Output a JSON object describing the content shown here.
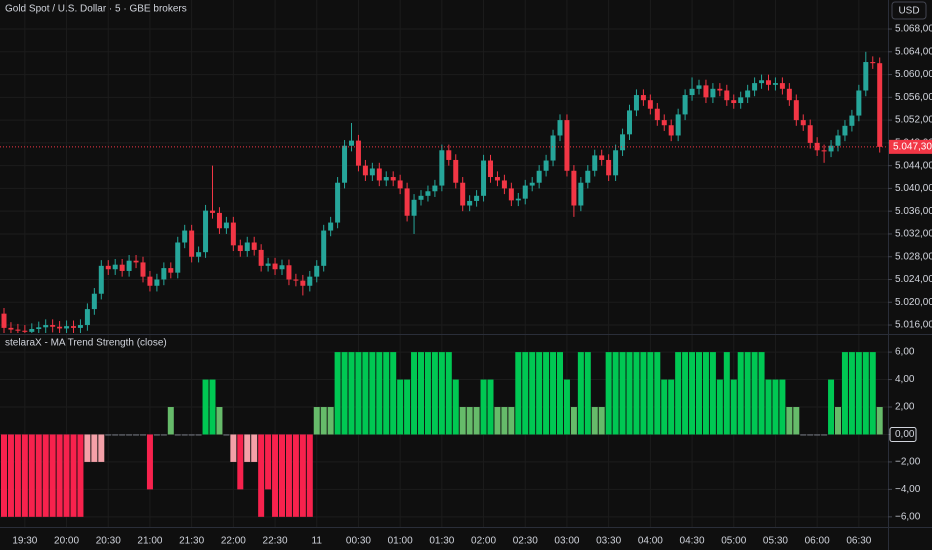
{
  "chart_data": [
    {
      "type": "candlestick",
      "title": "Gold Spot / U.S. Dollar · 5 · GBE brokers",
      "currency": "USD",
      "categories": [
        null,
        null,
        null,
        "19:30",
        null,
        null,
        null,
        null,
        null,
        "20:00",
        null,
        null,
        null,
        null,
        null,
        "20:30",
        null,
        null,
        null,
        null,
        null,
        "21:00",
        null,
        null,
        null,
        null,
        null,
        "21:30",
        null,
        null,
        null,
        null,
        null,
        "22:00",
        null,
        null,
        null,
        null,
        null,
        "22:30",
        null,
        null,
        null,
        null,
        null,
        "11",
        null,
        null,
        null,
        null,
        null,
        "00:30",
        null,
        null,
        null,
        null,
        null,
        "01:00",
        null,
        null,
        null,
        null,
        null,
        "01:30",
        null,
        null,
        null,
        null,
        null,
        "02:00",
        null,
        null,
        null,
        null,
        null,
        "02:30",
        null,
        null,
        null,
        null,
        null,
        "03:00",
        null,
        null,
        null,
        null,
        null,
        "03:30",
        null,
        null,
        null,
        null,
        null,
        "04:00",
        null,
        null,
        null,
        null,
        null,
        "04:30",
        null,
        null,
        null,
        null,
        null,
        "05:00",
        null,
        null,
        null,
        null,
        null,
        "05:30",
        null,
        null,
        null,
        null,
        null,
        "06:00",
        null,
        null,
        null,
        null,
        null,
        "06:30",
        null,
        null,
        null
      ],
      "open": [
        5018.0,
        5015.5,
        5015.2,
        5015.0,
        5014.8,
        5015.3,
        5015.6,
        5016.0,
        5015.7,
        5015.4,
        5015.8,
        5015.5,
        5016.0,
        5018.8,
        5021.5,
        5026.4,
        5025.8,
        5026.6,
        5025.5,
        5027.3,
        5027.0,
        5024.5,
        5022.9,
        5024.0,
        5026.0,
        5025.2,
        5030.5,
        5032.6,
        5028.0,
        5028.8,
        5036.1,
        5035.7,
        5033.0,
        5034.0,
        5030.0,
        5029.0,
        5030.5,
        5029.2,
        5026.4,
        5026.8,
        5025.8,
        5026.5,
        5024.0,
        5023.8,
        5022.9,
        5024.5,
        5026.4,
        5032.6,
        5034.0,
        5041.0,
        5047.5,
        5048.4,
        5044.0,
        5042.3,
        5043.5,
        5041.4,
        5042.0,
        5041.4,
        5040.0,
        5035.2,
        5038.0,
        5038.7,
        5039.5,
        5040.5,
        5046.7,
        5045.0,
        5041.0,
        5037.0,
        5037.8,
        5038.7,
        5044.9,
        5042.0,
        5041.4,
        5040.0,
        5037.9,
        5038.2,
        5040.5,
        5041.0,
        5043.1,
        5044.9,
        5049.3,
        5052.0,
        5043.1,
        5037.0,
        5041.0,
        5043.1,
        5045.8,
        5045.0,
        5042.3,
        5046.7,
        5049.5,
        5053.7,
        5056.4,
        5055.5,
        5054.0,
        5052.0,
        5051.1,
        5049.3,
        5053.0,
        5056.4,
        5057.5,
        5058.1,
        5056.0,
        5057.5,
        5057.2,
        5055.5,
        5055.0,
        5056.0,
        5057.2,
        5058.5,
        5059.0,
        5058.2,
        5058.5,
        5057.5,
        5055.5,
        5052.0,
        5051.1,
        5048.0,
        5046.7,
        5046.5,
        5047.5,
        5049.3,
        5051.0,
        5052.8,
        5057.2,
        5062.2,
        5062.0
      ],
      "high": [
        5019.0,
        5016.5,
        5016.2,
        5016.0,
        5016.3,
        5016.6,
        5017.0,
        5017.0,
        5016.7,
        5016.8,
        5016.8,
        5017.0,
        5019.8,
        5022.5,
        5027.4,
        5027.4,
        5027.6,
        5027.6,
        5028.3,
        5028.3,
        5028.0,
        5025.5,
        5025.0,
        5027.0,
        5027.0,
        5031.5,
        5033.6,
        5033.6,
        5029.8,
        5037.1,
        5044.0,
        5036.7,
        5035.0,
        5035.0,
        5031.0,
        5031.5,
        5031.5,
        5030.2,
        5027.8,
        5027.8,
        5027.5,
        5027.5,
        5025.0,
        5024.8,
        5025.5,
        5027.4,
        5033.6,
        5035.0,
        5042.0,
        5048.5,
        5051.5,
        5049.4,
        5045.0,
        5044.5,
        5044.5,
        5043.0,
        5043.0,
        5042.4,
        5041.0,
        5039.0,
        5039.7,
        5040.5,
        5041.5,
        5047.7,
        5047.7,
        5046.0,
        5042.0,
        5038.8,
        5039.7,
        5045.9,
        5045.9,
        5043.0,
        5042.4,
        5041.0,
        5039.2,
        5041.5,
        5042.0,
        5044.1,
        5045.9,
        5050.3,
        5053.0,
        5053.0,
        5044.1,
        5042.0,
        5044.1,
        5046.8,
        5046.8,
        5046.0,
        5047.7,
        5050.5,
        5054.7,
        5057.4,
        5057.4,
        5056.5,
        5055.0,
        5053.0,
        5052.1,
        5054.0,
        5057.4,
        5059.5,
        5059.1,
        5059.1,
        5058.5,
        5058.5,
        5058.2,
        5056.5,
        5057.0,
        5058.2,
        5059.5,
        5060.0,
        5060.0,
        5059.5,
        5059.5,
        5058.5,
        5056.5,
        5053.0,
        5052.1,
        5049.0,
        5047.7,
        5048.5,
        5050.3,
        5052.0,
        5053.8,
        5058.2,
        5064.0,
        5063.2,
        5063.0
      ],
      "low": [
        5014.5,
        5014.2,
        5014.0,
        5013.8,
        5013.8,
        5014.3,
        5014.6,
        5014.7,
        5014.4,
        5014.4,
        5014.5,
        5014.5,
        5015.0,
        5017.8,
        5020.5,
        5024.8,
        5024.8,
        5024.5,
        5024.5,
        5026.0,
        5023.5,
        5021.9,
        5021.9,
        5023.0,
        5024.2,
        5024.2,
        5029.5,
        5027.0,
        5027.0,
        5027.8,
        5034.7,
        5032.0,
        5032.0,
        5029.0,
        5028.0,
        5028.0,
        5028.2,
        5025.4,
        5025.4,
        5024.8,
        5024.8,
        5023.0,
        5022.8,
        5021.2,
        5021.9,
        5023.5,
        5025.4,
        5031.6,
        5033.0,
        5040.0,
        5046.5,
        5043.0,
        5041.3,
        5041.3,
        5040.4,
        5040.4,
        5040.4,
        5039.0,
        5034.2,
        5032.0,
        5037.0,
        5037.7,
        5038.5,
        5039.5,
        5044.0,
        5040.0,
        5036.0,
        5036.0,
        5036.8,
        5037.7,
        5041.0,
        5040.4,
        5039.0,
        5036.9,
        5036.9,
        5037.2,
        5039.5,
        5040.0,
        5042.1,
        5043.9,
        5048.3,
        5042.1,
        5035.0,
        5036.0,
        5040.0,
        5042.1,
        5044.0,
        5041.3,
        5041.3,
        5045.7,
        5048.5,
        5052.7,
        5054.5,
        5053.0,
        5051.0,
        5050.1,
        5048.3,
        5048.3,
        5052.0,
        5055.4,
        5056.5,
        5055.0,
        5055.0,
        5056.2,
        5054.5,
        5054.0,
        5054.0,
        5055.0,
        5056.2,
        5057.5,
        5057.2,
        5057.2,
        5056.5,
        5054.5,
        5051.0,
        5050.1,
        5047.0,
        5045.7,
        5044.5,
        5045.5,
        5046.5,
        5048.3,
        5050.0,
        5051.8,
        5056.2,
        5061.0,
        5046.3
      ],
      "close": [
        5015.5,
        5015.2,
        5015.0,
        5014.8,
        5015.3,
        5015.6,
        5016.0,
        5015.7,
        5015.4,
        5015.8,
        5015.5,
        5016.0,
        5018.8,
        5021.5,
        5026.4,
        5025.8,
        5026.6,
        5025.5,
        5027.3,
        5027.0,
        5024.5,
        5022.9,
        5024.0,
        5026.0,
        5025.2,
        5030.5,
        5032.6,
        5028.0,
        5028.8,
        5036.1,
        5035.7,
        5033.0,
        5034.0,
        5030.0,
        5029.0,
        5030.5,
        5029.2,
        5026.4,
        5026.8,
        5025.8,
        5026.5,
        5024.0,
        5023.8,
        5022.9,
        5024.5,
        5026.4,
        5032.6,
        5034.0,
        5041.0,
        5047.5,
        5048.4,
        5044.0,
        5042.3,
        5043.5,
        5041.4,
        5042.0,
        5041.4,
        5040.0,
        5035.2,
        5038.0,
        5038.7,
        5039.5,
        5040.5,
        5046.7,
        5045.0,
        5041.0,
        5037.0,
        5037.8,
        5038.7,
        5044.9,
        5042.0,
        5041.4,
        5040.0,
        5037.9,
        5038.2,
        5040.5,
        5041.0,
        5043.1,
        5044.9,
        5049.3,
        5052.0,
        5043.1,
        5037.0,
        5041.0,
        5043.1,
        5045.8,
        5045.0,
        5042.3,
        5046.7,
        5049.5,
        5053.7,
        5056.4,
        5055.5,
        5054.0,
        5052.0,
        5051.1,
        5049.3,
        5053.0,
        5056.4,
        5057.5,
        5058.1,
        5056.0,
        5057.5,
        5057.2,
        5055.5,
        5055.0,
        5056.0,
        5057.2,
        5058.5,
        5059.0,
        5058.2,
        5058.5,
        5057.5,
        5055.5,
        5052.0,
        5051.1,
        5048.0,
        5046.7,
        5046.5,
        5047.5,
        5049.3,
        5051.0,
        5052.8,
        5057.2,
        5062.2,
        5062.0,
        5047.3
      ],
      "up_color": "#26a69a",
      "down_color": "#f23645",
      "ylim": [
        5014.6,
        5073.1
      ],
      "yticks": [
        {
          "value": 5016,
          "label": "5.016,00"
        },
        {
          "value": 5020,
          "label": "5.020,00"
        },
        {
          "value": 5024,
          "label": "5.024,00"
        },
        {
          "value": 5028,
          "label": "5.028,00"
        },
        {
          "value": 5032,
          "label": "5.032,00"
        },
        {
          "value": 5036,
          "label": "5.036,00"
        },
        {
          "value": 5040,
          "label": "5.040,00"
        },
        {
          "value": 5044,
          "label": "5.044,00"
        },
        {
          "value": 5048,
          "label": "5.048,00"
        },
        {
          "value": 5052,
          "label": "5.052,00"
        },
        {
          "value": 5056,
          "label": "5.056,00"
        },
        {
          "value": 5060,
          "label": "5.060,00"
        },
        {
          "value": 5064,
          "label": "5.064,00"
        },
        {
          "value": 5068,
          "label": "5.068,00"
        }
      ],
      "last_price": {
        "value": 5047.3,
        "label": "5.047,30"
      },
      "grid": true
    },
    {
      "type": "bar",
      "title": "stelaraX - MA Trend Strength (close)",
      "values": [
        -6,
        -6,
        -6,
        -6,
        -6,
        -6,
        -6,
        -6,
        -6,
        -6,
        -6,
        -6,
        -2,
        -2,
        -2,
        0,
        0,
        0,
        0,
        0,
        0,
        -4,
        0,
        0,
        2,
        0,
        0,
        0,
        0,
        4,
        4,
        2,
        0,
        -2,
        -4,
        -2,
        -2,
        -6,
        -4,
        -6,
        -6,
        -6,
        -6,
        -6,
        -6,
        2,
        2,
        2,
        6,
        6,
        6,
        6,
        6,
        6,
        6,
        6,
        6,
        4,
        4,
        6,
        6,
        6,
        6,
        6,
        6,
        4,
        2,
        2,
        2,
        4,
        4,
        2,
        2,
        2,
        6,
        6,
        6,
        6,
        6,
        6,
        6,
        4,
        2,
        6,
        6,
        2,
        2,
        6,
        6,
        6,
        6,
        6,
        6,
        6,
        6,
        4,
        4,
        6,
        6,
        6,
        6,
        6,
        6,
        4,
        6,
        4,
        6,
        6,
        6,
        6,
        4,
        4,
        4,
        2,
        2,
        0,
        0,
        0,
        0,
        4,
        2,
        6,
        6,
        6,
        6,
        6,
        2
      ],
      "colors": [
        "#f7224d",
        "#f7224d",
        "#f7224d",
        "#f7224d",
        "#f7224d",
        "#f7224d",
        "#f7224d",
        "#f7224d",
        "#f7224d",
        "#f7224d",
        "#f7224d",
        "#f7224d",
        "#f4a0a8",
        "#f4a0a8",
        "#f4a0a8",
        "#787b86",
        "#787b86",
        "#787b86",
        "#787b86",
        "#787b86",
        "#787b86",
        "#f7224d",
        "#787b86",
        "#787b86",
        "#66bb6a",
        "#787b86",
        "#787b86",
        "#787b86",
        "#787b86",
        "#00c853",
        "#00c853",
        "#66bb6a",
        "#787b86",
        "#f4a0a8",
        "#f7224d",
        "#f4a0a8",
        "#f4a0a8",
        "#f7224d",
        "#f7224d",
        "#f7224d",
        "#f7224d",
        "#f7224d",
        "#f7224d",
        "#f7224d",
        "#f7224d",
        "#66bb6a",
        "#66bb6a",
        "#66bb6a",
        "#00c853",
        "#00c853",
        "#00c853",
        "#00c853",
        "#00c853",
        "#00c853",
        "#00c853",
        "#00c853",
        "#00c853",
        "#00c853",
        "#00c853",
        "#00c853",
        "#00c853",
        "#00c853",
        "#00c853",
        "#00c853",
        "#00c853",
        "#00c853",
        "#66bb6a",
        "#66bb6a",
        "#66bb6a",
        "#00c853",
        "#00c853",
        "#66bb6a",
        "#66bb6a",
        "#66bb6a",
        "#00c853",
        "#00c853",
        "#00c853",
        "#00c853",
        "#00c853",
        "#00c853",
        "#00c853",
        "#00c853",
        "#66bb6a",
        "#00c853",
        "#00c853",
        "#66bb6a",
        "#66bb6a",
        "#00c853",
        "#00c853",
        "#00c853",
        "#00c853",
        "#00c853",
        "#00c853",
        "#00c853",
        "#00c853",
        "#00c853",
        "#00c853",
        "#00c853",
        "#00c853",
        "#00c853",
        "#00c853",
        "#00c853",
        "#00c853",
        "#00c853",
        "#00c853",
        "#00c853",
        "#00c853",
        "#00c853",
        "#00c853",
        "#00c853",
        "#00c853",
        "#00c853",
        "#00c853",
        "#66bb6a",
        "#66bb6a",
        "#787b86",
        "#787b86",
        "#787b86",
        "#787b86",
        "#00c853",
        "#66bb6a",
        "#00c853",
        "#00c853",
        "#00c853",
        "#00c853",
        "#00c853",
        "#66bb6a"
      ],
      "ylim": [
        -6.74,
        7.1
      ],
      "yticks": [
        {
          "value": 6,
          "label": "6,00"
        },
        {
          "value": 4,
          "label": "4,00"
        },
        {
          "value": 2,
          "label": "2,00"
        },
        {
          "value": 0,
          "label": "0,00"
        },
        {
          "value": -2,
          "label": "−2,00"
        },
        {
          "value": -4,
          "label": "−4,00"
        },
        {
          "value": -6,
          "label": "−6,00"
        }
      ],
      "grid": true
    }
  ]
}
